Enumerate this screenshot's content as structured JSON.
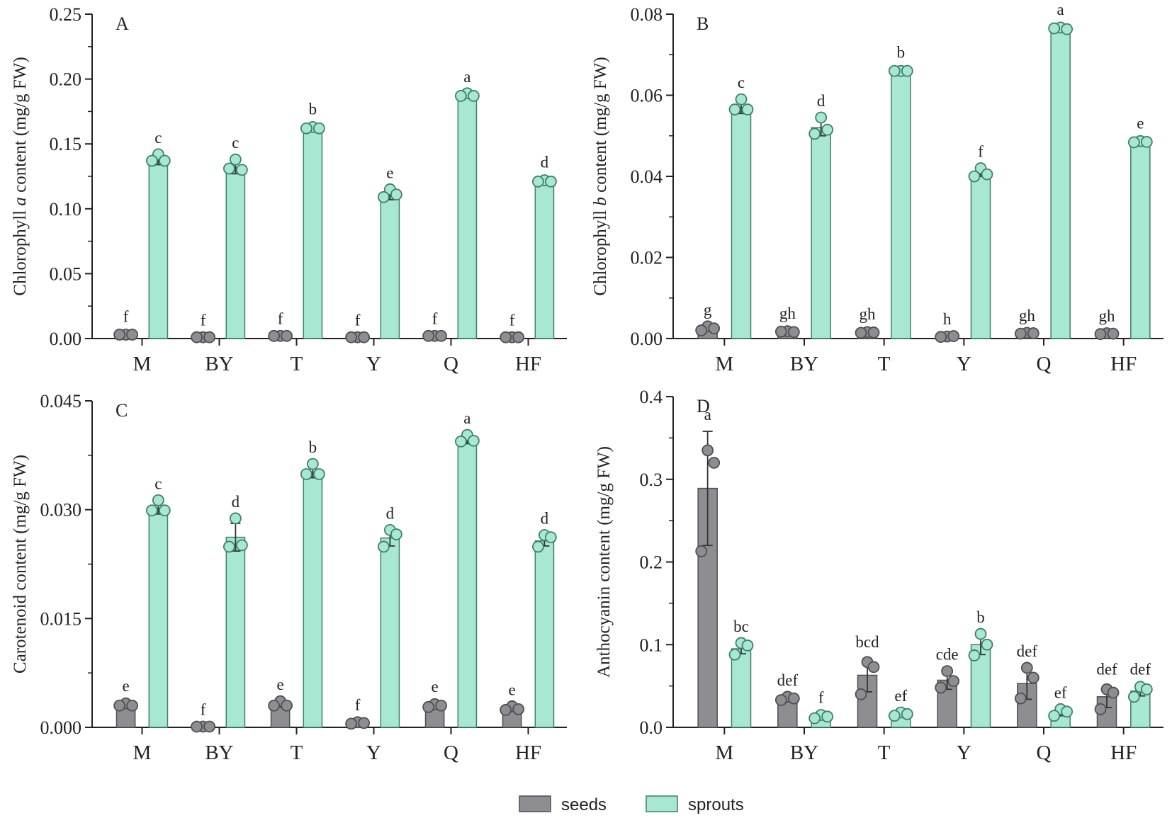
{
  "colors": {
    "seeds_fill": "#8e8e92",
    "seeds_stroke": "#4f4f54",
    "sprouts_fill": "#a8e8d2",
    "sprouts_stroke": "#3f7f6c",
    "axis": "#222222"
  },
  "legend": {
    "seeds": "seeds",
    "sprouts": "sprouts"
  },
  "chart_data": [
    {
      "panel": "A",
      "type": "bar",
      "ylabel_parts": [
        {
          "text": "Chlorophyll ",
          "italic": false
        },
        {
          "text": "a",
          "italic": true
        },
        {
          "text": " content  (mg/g FW)",
          "italic": false
        }
      ],
      "ylim": [
        0,
        0.25
      ],
      "yticks": [
        "0.00",
        "0.05",
        "0.10",
        "0.15",
        "0.20",
        "0.25"
      ],
      "categories": [
        "M",
        "BY",
        "T",
        "Y",
        "Q",
        "HF"
      ],
      "series": [
        {
          "name": "seeds",
          "values": [
            0.003,
            0.001,
            0.002,
            0.001,
            0.002,
            0.001
          ],
          "errors": [
            0.001,
            0.0005,
            0.0005,
            0.0005,
            0.0005,
            0.0005
          ],
          "points": [
            [
              0.003,
              0.003,
              0.003
            ],
            [
              0.001,
              0.001,
              0.001
            ],
            [
              0.002,
              0.002,
              0.002
            ],
            [
              0.001,
              0.001,
              0.001
            ],
            [
              0.002,
              0.002,
              0.002
            ],
            [
              0.001,
              0.001,
              0.001
            ]
          ],
          "letters": [
            "f",
            "f",
            "f",
            "f",
            "f",
            "f"
          ]
        },
        {
          "name": "sprouts",
          "values": [
            0.138,
            0.132,
            0.162,
            0.111,
            0.187,
            0.121
          ],
          "errors": [
            0.004,
            0.005,
            0.002,
            0.004,
            0.002,
            0.002
          ],
          "points": [
            [
              0.142,
              0.137,
              0.137
            ],
            [
              0.138,
              0.13,
              0.131
            ],
            [
              0.163,
              0.162,
              0.162
            ],
            [
              0.115,
              0.111,
              0.109
            ],
            [
              0.189,
              0.187,
              0.187
            ],
            [
              0.122,
              0.121,
              0.121
            ]
          ],
          "letters": [
            "c",
            "c",
            "b",
            "e",
            "a",
            "d"
          ]
        }
      ]
    },
    {
      "panel": "B",
      "type": "bar",
      "ylabel_parts": [
        {
          "text": "Chlorophyll ",
          "italic": false
        },
        {
          "text": "b",
          "italic": true
        },
        {
          "text": " content  (mg/g FW)",
          "italic": false
        }
      ],
      "ylim": [
        0,
        0.08
      ],
      "yticks": [
        "0.00",
        "0.02",
        "0.04",
        "0.06",
        "0.08"
      ],
      "categories": [
        "M",
        "BY",
        "T",
        "Y",
        "Q",
        "HF"
      ],
      "series": [
        {
          "name": "seeds",
          "values": [
            0.0025,
            0.0017,
            0.0015,
            0.0005,
            0.0013,
            0.0012
          ],
          "errors": [
            0.0005,
            0.0004,
            0.0004,
            0.0002,
            0.0003,
            0.0003
          ],
          "points": [
            [
              0.003,
              0.0025,
              0.002
            ],
            [
              0.0018,
              0.0016,
              0.0017
            ],
            [
              0.0016,
              0.0015,
              0.0014
            ],
            [
              0.0005,
              0.0006,
              0.0004
            ],
            [
              0.0014,
              0.0013,
              0.0012
            ],
            [
              0.0013,
              0.0012,
              0.0011
            ]
          ],
          "letters": [
            "g",
            "gh",
            "gh",
            "h",
            "gh",
            "gh"
          ]
        },
        {
          "name": "sprouts",
          "values": [
            0.057,
            0.052,
            0.066,
            0.041,
            0.0765,
            0.0485
          ],
          "errors": [
            0.0015,
            0.002,
            0.0005,
            0.001,
            0.0005,
            0.0005
          ],
          "points": [
            [
              0.059,
              0.0565,
              0.0565
            ],
            [
              0.0545,
              0.0515,
              0.0505
            ],
            [
              0.066,
              0.066,
              0.066
            ],
            [
              0.042,
              0.0405,
              0.04
            ],
            [
              0.0767,
              0.0763,
              0.0765
            ],
            [
              0.0487,
              0.0485,
              0.0484
            ]
          ],
          "letters": [
            "c",
            "d",
            "b",
            "f",
            "a",
            "e"
          ]
        }
      ]
    },
    {
      "panel": "C",
      "type": "bar",
      "ylabel_parts": [
        {
          "text": "Carotenoid content (mg/g FW)",
          "italic": false
        }
      ],
      "ylim": [
        0,
        0.045
      ],
      "yticks": [
        "0.000",
        "0.015",
        "0.030",
        "0.045"
      ],
      "categories": [
        "M",
        "BY",
        "T",
        "Y",
        "Q",
        "HF"
      ],
      "series": [
        {
          "name": "seeds",
          "values": [
            0.0031,
            0.0001,
            0.0032,
            0.0006,
            0.003,
            0.0026
          ],
          "errors": [
            0.0003,
            5e-05,
            0.0004,
            0.0002,
            0.0003,
            0.0003
          ],
          "points": [
            [
              0.0033,
              0.003,
              0.003
            ],
            [
              0.0001,
              0.0001,
              0.0001
            ],
            [
              0.0036,
              0.003,
              0.003
            ],
            [
              0.0007,
              0.0006,
              0.0005
            ],
            [
              0.0032,
              0.003,
              0.0028
            ],
            [
              0.0029,
              0.0025,
              0.0024
            ]
          ],
          "letters": [
            "e",
            "f",
            "e",
            "f",
            "e",
            "e"
          ]
        },
        {
          "name": "sprouts",
          "values": [
            0.0302,
            0.0262,
            0.0352,
            0.0261,
            0.0397,
            0.0257
          ],
          "errors": [
            0.0008,
            0.0019,
            0.0008,
            0.0011,
            0.0006,
            0.0007
          ],
          "points": [
            [
              0.0313,
              0.0299,
              0.0299
            ],
            [
              0.0288,
              0.0251,
              0.0249
            ],
            [
              0.0363,
              0.0349,
              0.0349
            ],
            [
              0.0272,
              0.0266,
              0.0249
            ],
            [
              0.0403,
              0.0395,
              0.0394
            ],
            [
              0.0265,
              0.0262,
              0.0249
            ]
          ],
          "letters": [
            "c",
            "d",
            "b",
            "d",
            "a",
            "d"
          ]
        }
      ]
    },
    {
      "panel": "D",
      "type": "bar",
      "ylabel_parts": [
        {
          "text": "Anthocyanin content (mg/g FW)",
          "italic": false
        }
      ],
      "ylim": [
        0,
        0.4
      ],
      "yticks": [
        "0.0",
        "0.1",
        "0.2",
        "0.3",
        "0.4"
      ],
      "categories": [
        "M",
        "BY",
        "T",
        "Y",
        "Q",
        "HF"
      ],
      "series": [
        {
          "name": "seeds",
          "values": [
            0.289,
            0.035,
            0.063,
            0.057,
            0.053,
            0.037
          ],
          "errors": [
            0.069,
            0.002,
            0.02,
            0.011,
            0.019,
            0.013
          ],
          "points": [
            [
              0.335,
              0.32,
              0.213
            ],
            [
              0.037,
              0.035,
              0.033
            ],
            [
              0.079,
              0.073,
              0.04
            ],
            [
              0.068,
              0.056,
              0.048
            ],
            [
              0.072,
              0.06,
              0.035
            ],
            [
              0.046,
              0.042,
              0.022
            ]
          ],
          "letters": [
            "a",
            "def",
            "bcd",
            "cde",
            "def",
            "def"
          ]
        },
        {
          "name": "sprouts",
          "values": [
            0.095,
            0.013,
            0.016,
            0.1,
            0.018,
            0.044
          ],
          "errors": [
            0.006,
            0.003,
            0.002,
            0.012,
            0.004,
            0.006
          ],
          "points": [
            [
              0.102,
              0.099,
              0.088
            ],
            [
              0.015,
              0.013,
              0.011
            ],
            [
              0.018,
              0.016,
              0.014
            ],
            [
              0.113,
              0.1,
              0.087
            ],
            [
              0.022,
              0.019,
              0.014
            ],
            [
              0.049,
              0.046,
              0.037
            ]
          ],
          "letters": [
            "bc",
            "f",
            "ef",
            "b",
            "ef",
            "def"
          ]
        }
      ]
    }
  ]
}
